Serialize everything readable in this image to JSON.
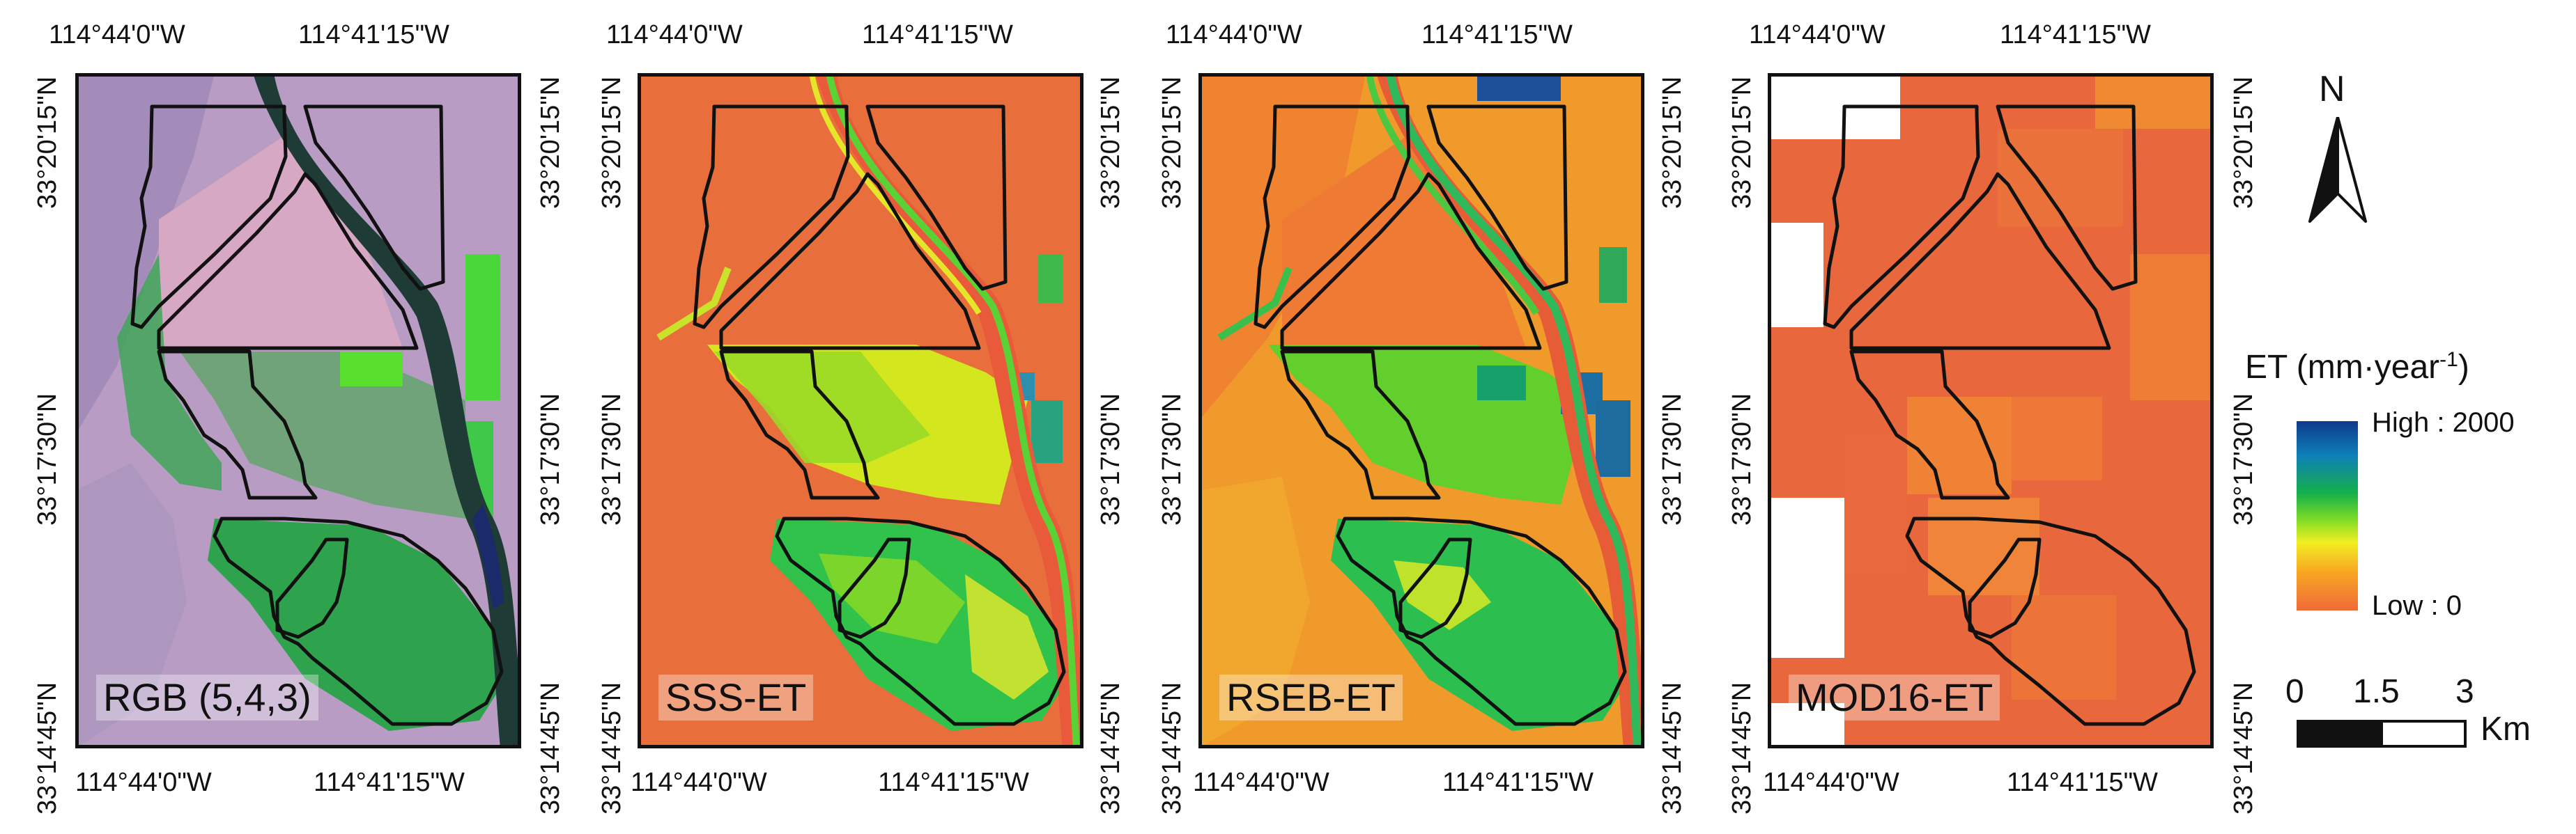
{
  "panels": [
    {
      "label": "RGB (5,4,3)"
    },
    {
      "label": "SSS-ET"
    },
    {
      "label": "RSEB-ET"
    },
    {
      "label": "MOD16-ET"
    }
  ],
  "ticks": {
    "lon_left": "114°44'0\"W",
    "lon_right": "114°41'15\"W",
    "lat_top": "33°20'15\"N",
    "lat_mid": "33°17'30\"N",
    "lat_bottom": "33°14'45\"N"
  },
  "north_arrow": {
    "label": "N"
  },
  "legend": {
    "title": "ET (mm·year",
    "title_exp": "-1",
    "title_close": ")",
    "high": "High : 2000",
    "low": "Low : 0"
  },
  "scale_bar": {
    "labels": [
      "0",
      "1.5",
      "3"
    ],
    "unit": "Km"
  },
  "colors": {
    "low": "#ef6b3a",
    "mid": "#f2ee22",
    "green": "#13b04a",
    "high": "#0b3a8a",
    "frame": "#111111"
  }
}
